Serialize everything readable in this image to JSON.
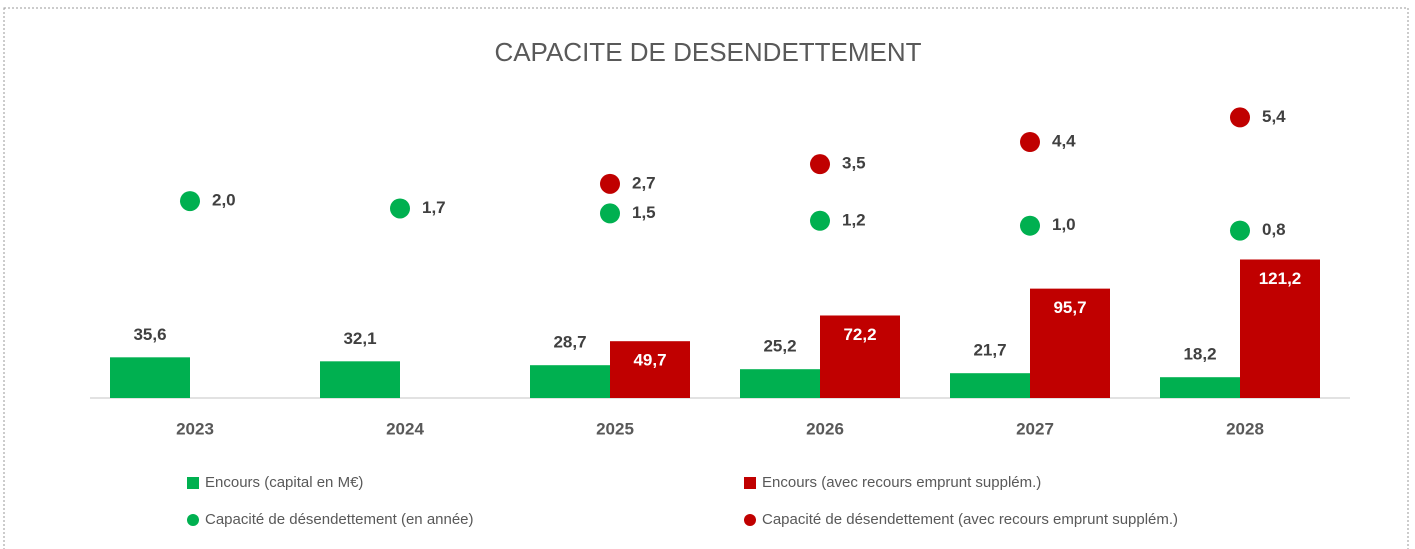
{
  "chart_data": {
    "type": "bar",
    "title": "CAPACITE DE DESENDETTEMENT",
    "categories": [
      "2023",
      "2024",
      "2025",
      "2026",
      "2027",
      "2028"
    ],
    "ylim": [
      0,
      280
    ],
    "y2lim": [
      -6,
      7
    ],
    "series": [
      {
        "name": "Encours (capital en M€)",
        "type": "bar",
        "color": "#00b050",
        "values": [
          35.6,
          32.1,
          28.7,
          25.2,
          21.7,
          18.2
        ],
        "value_labels": [
          "35,6",
          "32,1",
          "28,7",
          "25,2",
          "21,7",
          "18,2"
        ]
      },
      {
        "name": "Encours (avec recours emprunt supplém.)",
        "type": "bar",
        "color": "#c00000",
        "values": [
          null,
          null,
          49.7,
          72.2,
          95.7,
          121.2
        ],
        "value_labels": [
          null,
          null,
          "49,7",
          "72,2",
          "95,7",
          "121,2"
        ]
      },
      {
        "name": "Capacité de désendettement (en année)",
        "type": "scatter",
        "axis": "y2",
        "color": "#00b050",
        "values": [
          2.0,
          1.7,
          1.5,
          1.2,
          1.0,
          0.8
        ],
        "value_labels": [
          "2,0",
          "1,7",
          "1,5",
          "1,2",
          "1,0",
          "0,8"
        ]
      },
      {
        "name": "Capacité de désendettement (avec recours emprunt supplém.)",
        "type": "scatter",
        "axis": "y2",
        "color": "#c00000",
        "values": [
          null,
          null,
          2.7,
          3.5,
          4.4,
          5.4
        ],
        "value_labels": [
          null,
          null,
          "2,7",
          "3,5",
          "4,4",
          "5,4"
        ]
      }
    ]
  }
}
